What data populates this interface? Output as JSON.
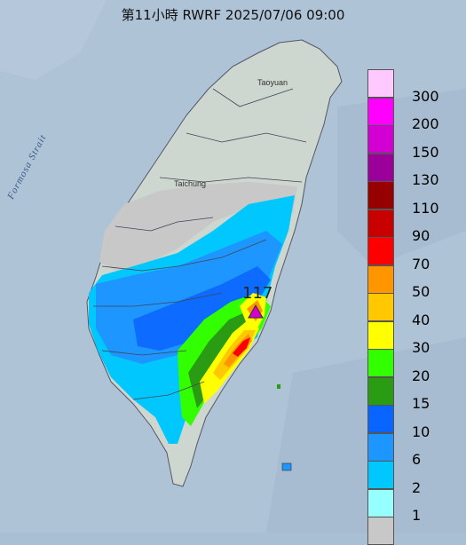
{
  "title": "第11小時  RWRF 2025/07/06 09:00",
  "map": {
    "place_labels": [
      "Taoyuan",
      "Taichung"
    ],
    "sea_label": "Formosa Strait",
    "max_value_label": "117",
    "background_color": "#a9bfd3",
    "land_color": "#cfd7cf"
  },
  "legend": {
    "labels": [
      "300",
      "200",
      "150",
      "130",
      "110",
      "90",
      "70",
      "50",
      "40",
      "30",
      "20",
      "15",
      "10",
      "6",
      "2",
      "1"
    ],
    "colors": [
      "#ffc8ff",
      "#ff00ff",
      "#d200d2",
      "#9b009b",
      "#960000",
      "#c80000",
      "#ff0000",
      "#ff9600",
      "#ffc800",
      "#ffff00",
      "#32ff00",
      "#2a9c14",
      "#0a64ff",
      "#1e96ff",
      "#00c8ff",
      "#96ffff",
      "#c8c8c8"
    ]
  }
}
